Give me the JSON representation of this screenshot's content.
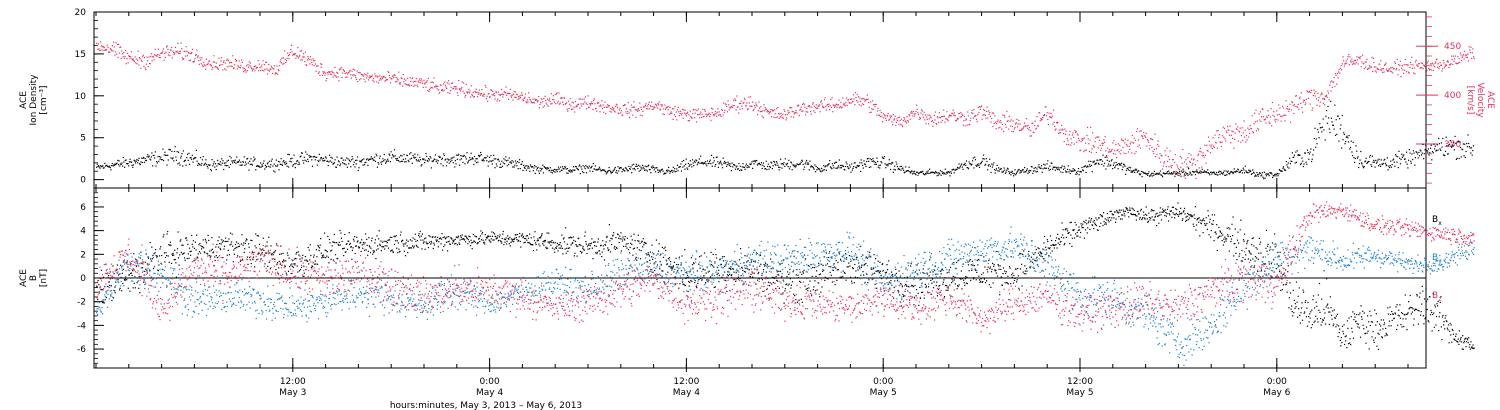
{
  "colors": {
    "density": "#000000",
    "velocity": "#e8305a",
    "bx": "#000000",
    "by": "#1a7fd6",
    "bz": "#e8305a",
    "axis": "#000000"
  },
  "chart_data": [
    {
      "type": "scatter",
      "title": "",
      "ylabel_lines": [
        "ACE",
        "Ion Density",
        "[cm⁻³]"
      ],
      "ylabel2_lines": [
        "ACE",
        "Velocity",
        "[km/s]"
      ],
      "ylim": [
        -1,
        20
      ],
      "y2lim": [
        305,
        485
      ],
      "yticks": [
        0,
        5,
        10,
        15,
        20
      ],
      "y2ticks": [
        350,
        400,
        450
      ],
      "xlim_hours": [
        0,
        84
      ],
      "series": [
        {
          "key": "density",
          "axis": "left",
          "x": [
            0,
            2,
            3,
            5,
            6,
            7,
            8,
            9,
            10,
            11,
            12,
            13,
            14,
            15,
            16,
            17,
            18,
            19,
            20,
            21,
            22,
            23,
            24,
            25,
            26,
            27,
            28,
            29,
            30,
            31,
            32,
            33,
            34,
            35,
            36,
            37,
            38,
            39,
            40,
            41,
            42,
            43,
            44,
            45,
            46,
            47,
            48,
            49,
            50,
            51,
            52,
            53,
            54,
            55,
            56,
            57,
            58,
            59,
            60,
            61,
            62,
            63,
            64,
            65,
            66,
            67,
            68,
            69,
            70,
            71,
            72,
            73,
            74,
            75,
            76,
            77,
            78,
            79,
            80,
            81,
            82,
            83,
            84
          ],
          "y": [
            1.5,
            2.1,
            2.4,
            3.0,
            2.4,
            1.8,
            2.0,
            2.1,
            1.9,
            2.0,
            2.3,
            2.6,
            2.4,
            2.1,
            2.2,
            2.5,
            2.7,
            2.6,
            2.3,
            2.6,
            2.4,
            2.7,
            2.4,
            2.1,
            1.7,
            1.3,
            1.3,
            1.2,
            1.5,
            1.1,
            1.2,
            1.5,
            1.2,
            1.0,
            1.8,
            2.2,
            2.0,
            1.5,
            2.0,
            1.7,
            1.9,
            2.0,
            1.4,
            1.8,
            1.5,
            2.1,
            2.1,
            1.4,
            0.8,
            0.9,
            0.9,
            2.0,
            2.3,
            1.2,
            0.9,
            1.3,
            1.6,
            1.3,
            1.1,
            2.4,
            2.0,
            1.2,
            0.7,
            0.8,
            0.8,
            1.0,
            0.8,
            0.9,
            1.2,
            0.6,
            0.7,
            2.5,
            3.0,
            7.6,
            6.0,
            2.5,
            2.0,
            2.2,
            2.5,
            3.3,
            4.0,
            4.1,
            3.7
          ],
          "ys": [
            0.4,
            0.6,
            0.7,
            0.9,
            0.8,
            0.6,
            0.6,
            0.6,
            0.6,
            0.6,
            0.7,
            0.7,
            0.7,
            0.6,
            0.7,
            0.7,
            0.7,
            0.7,
            0.6,
            0.7,
            0.7,
            0.7,
            0.7,
            0.6,
            0.5,
            0.4,
            0.4,
            0.4,
            0.4,
            0.4,
            0.4,
            0.5,
            0.4,
            0.4,
            0.6,
            0.6,
            0.6,
            0.5,
            0.6,
            0.5,
            0.6,
            0.6,
            0.5,
            0.6,
            0.5,
            0.6,
            0.6,
            0.5,
            0.3,
            0.3,
            0.3,
            0.6,
            0.7,
            0.4,
            0.3,
            0.4,
            0.5,
            0.4,
            0.4,
            0.8,
            0.7,
            0.4,
            0.3,
            0.3,
            0.3,
            0.4,
            0.3,
            0.3,
            0.4,
            0.3,
            0.3,
            0.9,
            1.1,
            2.2,
            1.9,
            1.0,
            0.8,
            0.8,
            0.8,
            1.0,
            1.2,
            1.2,
            1.1
          ],
          "n": 24
        },
        {
          "key": "velocity",
          "axis": "right",
          "x": [
            0,
            1,
            2,
            3,
            4,
            5,
            6,
            7,
            8,
            9,
            10,
            11,
            12,
            13,
            14,
            15,
            16,
            17,
            18,
            19,
            20,
            21,
            22,
            23,
            24,
            25,
            26,
            27,
            28,
            29,
            30,
            31,
            32,
            33,
            34,
            35,
            36,
            37,
            38,
            39,
            40,
            41,
            42,
            43,
            44,
            45,
            46,
            47,
            48,
            49,
            50,
            51,
            52,
            53,
            54,
            55,
            56,
            57,
            58,
            59,
            60,
            61,
            62,
            63,
            64,
            65,
            66,
            67,
            68,
            69,
            70,
            71,
            72,
            73,
            74,
            75,
            76,
            77,
            78,
            79,
            80,
            81,
            82,
            83,
            84
          ],
          "y": [
            452,
            447,
            438,
            436,
            443,
            445,
            441,
            433,
            433,
            430,
            431,
            427,
            446,
            435,
            423,
            424,
            420,
            418,
            417,
            414,
            412,
            407,
            408,
            404,
            401,
            401,
            398,
            393,
            396,
            391,
            393,
            389,
            386,
            385,
            391,
            384,
            381,
            380,
            383,
            392,
            392,
            382,
            380,
            387,
            389,
            390,
            396,
            394,
            378,
            373,
            384,
            376,
            380,
            377,
            384,
            371,
            372,
            364,
            383,
            362,
            353,
            352,
            343,
            350,
            358,
            337,
            330,
            330,
            353,
            361,
            363,
            375,
            382,
            388,
            398,
            400,
            433,
            436,
            430,
            427,
            430,
            430,
            432,
            436,
            445
          ],
          "ys": [
            7,
            7,
            7,
            7,
            7,
            7,
            7,
            6,
            6,
            6,
            6,
            6,
            8,
            7,
            6,
            6,
            6,
            6,
            6,
            6,
            6,
            6,
            6,
            6,
            6,
            6,
            6,
            6,
            6,
            6,
            6,
            6,
            6,
            6,
            6,
            6,
            6,
            6,
            6,
            7,
            7,
            6,
            6,
            6,
            6,
            6,
            7,
            7,
            6,
            6,
            7,
            7,
            7,
            7,
            8,
            8,
            9,
            9,
            9,
            9,
            10,
            10,
            11,
            11,
            11,
            12,
            12,
            12,
            12,
            12,
            12,
            12,
            12,
            10,
            10,
            10,
            8,
            7,
            6,
            6,
            6,
            6,
            6,
            6,
            6
          ],
          "n": 26
        }
      ]
    },
    {
      "type": "scatter",
      "title": "",
      "ylabel_lines": [
        "ACE",
        "B",
        "[nT]"
      ],
      "ylim": [
        -7.6,
        7.6
      ],
      "yticks": [
        -6,
        -4,
        -2,
        0,
        2,
        4,
        6
      ],
      "xlim_hours": [
        0,
        84
      ],
      "legend": {
        "placement": "right",
        "items": [
          {
            "key": "bx",
            "text": "Bx",
            "sub": "x"
          },
          {
            "key": "by",
            "text": "By",
            "sub": "y"
          },
          {
            "key": "bz",
            "text": "Bz",
            "sub": "z"
          }
        ]
      },
      "series": [
        {
          "key": "bx",
          "x": [
            0,
            2,
            4,
            6,
            8,
            10,
            12,
            14,
            16,
            18,
            20,
            22,
            24,
            26,
            28,
            30,
            32,
            34,
            36,
            38,
            40,
            42,
            44,
            46,
            48,
            50,
            52,
            54,
            56,
            58,
            60,
            62,
            63,
            64,
            66,
            68,
            70,
            72,
            73,
            74,
            75,
            76,
            77,
            78,
            79,
            80,
            81,
            82,
            83,
            84
          ],
          "y": [
            -1.0,
            0.2,
            2.0,
            2.5,
            2.7,
            2.3,
            1.2,
            2.4,
            2.8,
            3.0,
            3.1,
            3.3,
            3.4,
            3.3,
            3.0,
            2.7,
            3.1,
            2.0,
            0.3,
            1.0,
            0.8,
            -0.3,
            0.2,
            1.2,
            0.3,
            -0.5,
            0.2,
            0.6,
            0.4,
            2.6,
            4.2,
            5.2,
            5.8,
            5.2,
            5.6,
            4.3,
            2.8,
            1.5,
            -2.0,
            -3.0,
            -2.5,
            -5.0,
            -3.5,
            -4.3,
            -3.5,
            -3.0,
            -2.0,
            -3.5,
            -5.0,
            -5.8
          ],
          "ys": [
            1.4,
            1.6,
            1.4,
            1.2,
            1.0,
            1.2,
            1.3,
            1.0,
            1.0,
            0.8,
            0.7,
            0.6,
            0.5,
            0.6,
            0.8,
            0.9,
            1.0,
            1.3,
            1.5,
            1.4,
            1.4,
            1.5,
            1.5,
            1.4,
            1.4,
            1.5,
            1.4,
            1.4,
            1.4,
            1.0,
            0.8,
            0.5,
            0.4,
            0.6,
            0.6,
            1.0,
            1.5,
            1.8,
            1.8,
            1.6,
            1.8,
            1.3,
            1.5,
            1.2,
            1.3,
            1.4,
            1.6,
            1.4,
            0.8,
            0.4
          ],
          "n": 30
        },
        {
          "key": "by",
          "x": [
            0,
            2,
            4,
            6,
            8,
            10,
            12,
            14,
            16,
            18,
            20,
            22,
            24,
            26,
            28,
            30,
            32,
            34,
            36,
            38,
            40,
            42,
            44,
            46,
            48,
            50,
            52,
            54,
            56,
            58,
            60,
            62,
            64,
            66,
            68,
            70,
            72,
            74,
            76,
            78,
            80,
            82,
            84
          ],
          "y": [
            -3.0,
            1.5,
            0.5,
            -2.0,
            -1.5,
            -1.8,
            -2.5,
            -2.0,
            -1.0,
            -1.5,
            -2.3,
            -0.8,
            -2.2,
            -1.0,
            -0.5,
            -1.0,
            0.5,
            0.8,
            0.3,
            0.5,
            1.6,
            1.5,
            2.0,
            2.5,
            -0.5,
            0.8,
            1.7,
            2.4,
            2.8,
            1.0,
            -1.5,
            -1.8,
            -3.0,
            -5.5,
            -4.0,
            -0.5,
            1.8,
            2.5,
            1.5,
            2.0,
            1.2,
            1.3,
            2.8
          ],
          "ys": [
            0.6,
            1.6,
            1.6,
            1.2,
            1.3,
            1.2,
            1.2,
            1.2,
            1.4,
            1.3,
            1.0,
            1.4,
            0.8,
            1.0,
            1.2,
            1.2,
            1.3,
            1.3,
            1.4,
            1.4,
            1.3,
            1.3,
            1.3,
            1.2,
            1.5,
            1.5,
            1.3,
            1.2,
            1.2,
            1.5,
            1.5,
            1.6,
            1.5,
            1.5,
            1.6,
            1.8,
            1.4,
            1.2,
            1.0,
            0.8,
            0.6,
            0.6,
            0.8
          ],
          "n": 30
        },
        {
          "key": "bz",
          "x": [
            0,
            2,
            4,
            6,
            8,
            10,
            12,
            14,
            16,
            18,
            20,
            22,
            24,
            26,
            28,
            30,
            32,
            34,
            36,
            38,
            40,
            42,
            44,
            46,
            48,
            50,
            52,
            54,
            56,
            58,
            60,
            62,
            64,
            66,
            68,
            70,
            72,
            74,
            76,
            78,
            80,
            82,
            84
          ],
          "y": [
            -0.5,
            2.0,
            -2.5,
            0.8,
            0.2,
            1.5,
            0.5,
            -0.2,
            0.5,
            -0.5,
            -1.5,
            -1.0,
            -1.0,
            -1.5,
            -2.5,
            -2.0,
            -1.0,
            0.0,
            -2.0,
            -1.5,
            -0.8,
            -1.8,
            -2.0,
            -2.5,
            -1.5,
            -2.5,
            -1.5,
            -3.5,
            -2.0,
            -1.5,
            -3.0,
            -2.5,
            -2.0,
            -2.5,
            -1.0,
            0.0,
            -0.5,
            5.5,
            5.8,
            4.5,
            4.2,
            3.8,
            3.5
          ],
          "ys": [
            1.3,
            1.3,
            1.2,
            1.5,
            1.5,
            1.4,
            1.4,
            1.5,
            1.5,
            1.5,
            1.3,
            1.4,
            1.4,
            1.3,
            1.0,
            1.3,
            1.4,
            1.5,
            1.4,
            1.4,
            1.5,
            1.4,
            1.3,
            1.2,
            1.4,
            1.2,
            1.4,
            1.0,
            1.3,
            1.4,
            1.3,
            1.4,
            1.4,
            1.3,
            1.5,
            1.5,
            1.6,
            0.8,
            0.6,
            0.6,
            0.6,
            0.6,
            0.6
          ],
          "n": 30
        }
      ]
    }
  ],
  "x_axis": {
    "ticks": [
      {
        "hour": 12,
        "time": "12:00",
        "date": "May  3"
      },
      {
        "hour": 24,
        "time": "0:00",
        "date": "May 4"
      },
      {
        "hour": 36,
        "time": "12:00",
        "date": "May 4"
      },
      {
        "hour": 48,
        "time": "0:00",
        "date": "May 5"
      },
      {
        "hour": 60,
        "time": "12:00",
        "date": "May 5"
      },
      {
        "hour": 72,
        "time": "0:00",
        "date": "May 6"
      }
    ],
    "minor_every_hours": 2,
    "label": "hours:minutes, May  3, 2013 – May  6, 2013"
  }
}
